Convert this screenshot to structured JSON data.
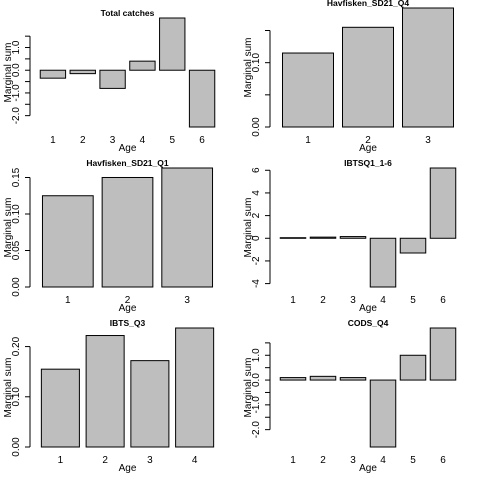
{
  "chart_data": [
    {
      "type": "bar",
      "title": "Total catches",
      "xlabel": "Age",
      "ylabel": "Marginal sum",
      "categories": [
        "1",
        "2",
        "3",
        "4",
        "5",
        "6"
      ],
      "values": [
        -0.35,
        -0.15,
        -0.8,
        0.4,
        2.3,
        -2.5
      ],
      "ylim": [
        -2.5,
        2.3
      ],
      "yticks": [
        -2.0,
        -1.5,
        -1.0,
        -0.5,
        0.0,
        0.5,
        1.0,
        1.5
      ],
      "ytick_labels": [
        "-2.0",
        "",
        "-1.0",
        "",
        "0.0",
        "",
        "1.0",
        ""
      ]
    },
    {
      "type": "bar",
      "title": "Havfisken_SD21_Q4",
      "xlabel": "Age",
      "ylabel": "Marginal sum",
      "categories": [
        "1",
        "2",
        "3"
      ],
      "values": [
        0.115,
        0.155,
        0.185
      ],
      "ylim": [
        0,
        0.185
      ],
      "yticks": [
        0.0,
        0.05,
        0.1,
        0.15
      ],
      "ytick_labels": [
        "0.00",
        "",
        "0.10",
        ""
      ]
    },
    {
      "type": "bar",
      "title": "Havfisken_SD21_Q1",
      "xlabel": "Age",
      "ylabel": "Marginal sum",
      "categories": [
        "1",
        "2",
        "3"
      ],
      "values": [
        0.125,
        0.15,
        0.163
      ],
      "ylim": [
        0,
        0.163
      ],
      "yticks": [
        0.0,
        0.05,
        0.1,
        0.15
      ],
      "ytick_labels": [
        "0.00",
        "0.05",
        "0.10",
        "0.15"
      ]
    },
    {
      "type": "bar",
      "title": "IBTSQ1_1-6",
      "xlabel": "Age",
      "ylabel": "Marginal sum",
      "categories": [
        "1",
        "2",
        "3",
        "4",
        "5",
        "6"
      ],
      "values": [
        0.05,
        0.1,
        0.15,
        -4.3,
        -1.3,
        6.2
      ],
      "ylim": [
        -4.3,
        6.2
      ],
      "yticks": [
        -4,
        -2,
        0,
        2,
        4,
        6
      ],
      "ytick_labels": [
        "-4",
        "-2",
        "0",
        "2",
        "4",
        "6"
      ]
    },
    {
      "type": "bar",
      "title": "IBTS_Q3",
      "xlabel": "Age",
      "ylabel": "Marginal sum",
      "categories": [
        "1",
        "2",
        "3",
        "4"
      ],
      "values": [
        0.155,
        0.222,
        0.172,
        0.237
      ],
      "ylim": [
        0,
        0.237
      ],
      "yticks": [
        0.0,
        0.1,
        0.2
      ],
      "ytick_labels": [
        "0.00",
        "0.10",
        "0.20"
      ]
    },
    {
      "type": "bar",
      "title": "CODS_Q4",
      "xlabel": "Age",
      "ylabel": "Marginal sum",
      "categories": [
        "1",
        "2",
        "3",
        "4",
        "5",
        "6"
      ],
      "values": [
        0.1,
        0.15,
        0.1,
        -2.7,
        1.0,
        2.1
      ],
      "ylim": [
        -2.7,
        2.1
      ],
      "yticks": [
        -2.0,
        -1.5,
        -1.0,
        -0.5,
        0.0,
        0.5,
        1.0,
        1.5
      ],
      "ytick_labels": [
        "-2.0",
        "",
        "-1.0",
        "",
        "0.0",
        "",
        "1.0",
        ""
      ]
    }
  ]
}
